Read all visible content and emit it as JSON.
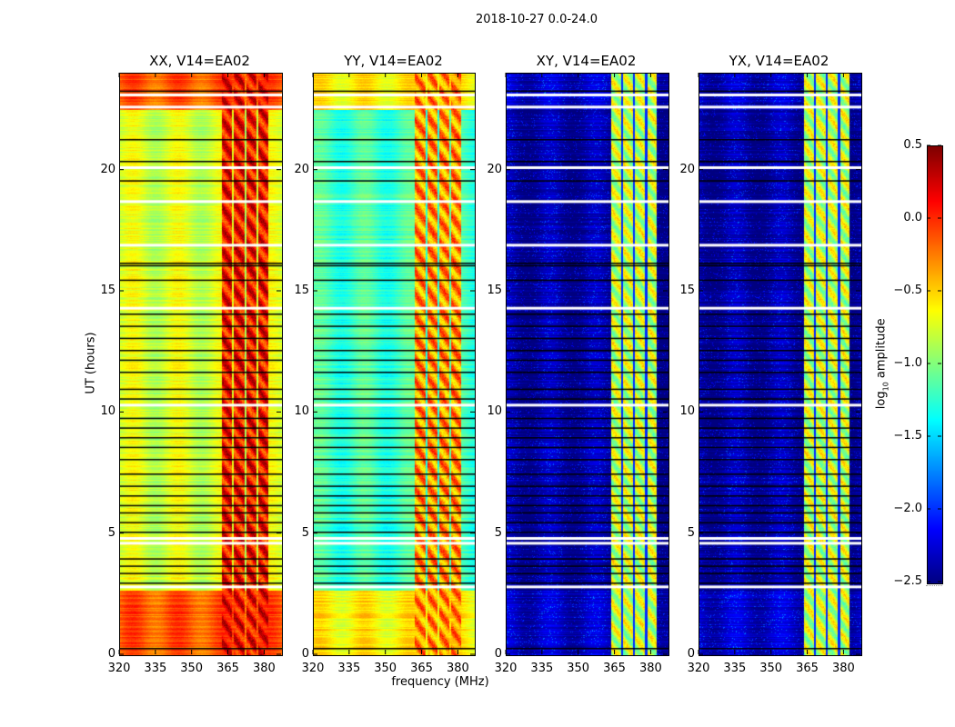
{
  "chart_data": {
    "type": "heatmap",
    "suptitle": "2018-10-27 0.0-24.0",
    "xlabel": "frequency (MHz)",
    "ylabel": "UT (hours)",
    "xlim": [
      320,
      387
    ],
    "ylim": [
      0,
      24
    ],
    "xticks": [
      "320",
      "335",
      "350",
      "365",
      "380"
    ],
    "xtick_values": [
      320,
      335,
      350,
      365,
      380
    ],
    "yticks": [
      "0",
      "5",
      "10",
      "15",
      "20"
    ],
    "ytick_values": [
      0,
      5,
      10,
      15,
      20
    ],
    "colorbar": {
      "label": "log10 amplitude",
      "label_main": "log",
      "label_sub": "10",
      "label_rest": " amplitude",
      "range": [
        -2.5,
        0.5
      ],
      "ticks": [
        "0.5",
        "0.0",
        "−0.5",
        "−1.0",
        "−1.5",
        "−2.0",
        "−2.5"
      ],
      "tick_values": [
        0.5,
        0.0,
        -0.5,
        -1.0,
        -1.5,
        -2.0,
        -2.5
      ],
      "colormap": "jet"
    },
    "panels": [
      {
        "title": "XX, V14=EA02",
        "base": -0.75,
        "low_time_base": -0.15,
        "rfi_band": [
          362,
          382
        ],
        "rfi_level": 0.1
      },
      {
        "title": "YY, V14=EA02",
        "base": -1.2,
        "low_time_base": -0.6,
        "rfi_band": [
          362,
          382
        ],
        "rfi_level": -0.3
      },
      {
        "title": "XY, V14=EA02",
        "base": -2.4,
        "low_time_base": -2.3,
        "rfi_band": [
          363,
          382
        ],
        "rfi_level": -0.8
      },
      {
        "title": "YX, V14=EA02",
        "base": -2.4,
        "low_time_base": -2.3,
        "rfi_band": [
          363,
          382
        ],
        "rfi_level": -0.8
      }
    ],
    "flagged_hours_white": [
      2.8,
      4.6,
      4.8,
      10.3,
      14.3,
      16.9,
      18.7,
      20.1,
      22.6,
      23.1
    ],
    "flagged_hours_black": [
      0.3,
      3.0,
      3.4,
      3.7,
      4.0,
      5.1,
      5.5,
      5.9,
      6.2,
      6.6,
      7.0,
      7.5,
      8.1,
      8.6,
      9.0,
      9.4,
      9.8,
      10.6,
      11.0,
      11.7,
      12.2,
      12.6,
      13.1,
      13.6,
      14.1,
      15.5,
      16.1,
      16.2,
      19.6,
      20.4,
      21.3,
      23.3
    ]
  }
}
